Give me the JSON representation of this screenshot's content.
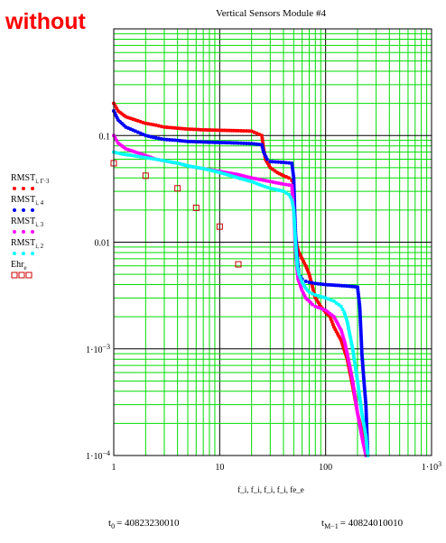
{
  "overlay_label": "without",
  "chart_data": {
    "type": "scatter",
    "title": "Vertical Sensors Module #4",
    "x_scale": "log",
    "y_scale": "log",
    "xlim": [
      1,
      1000
    ],
    "ylim": [
      0.0001,
      1
    ],
    "grid": true,
    "x_tick_labels": [
      {
        "value": 1,
        "text": "1"
      },
      {
        "value": 10,
        "text": "10"
      },
      {
        "value": 100,
        "text": "100"
      },
      {
        "value": 1000,
        "text": "1·10",
        "sup": "3"
      }
    ],
    "y_tick_labels": [
      {
        "value": 0.1,
        "text": "0.1"
      },
      {
        "value": 0.01,
        "text": "0.01"
      },
      {
        "value": 0.001,
        "text": "1·10",
        "sup": "−3"
      },
      {
        "value": 0.0001,
        "text": "1·10",
        "sup": "−4"
      }
    ],
    "xlabel": "f_i, f_i, f_i, f_i, fe_e",
    "legend": [
      {
        "label": "RMST",
        "sub": "i, Γ·3",
        "marker": "dot",
        "color": "#ff0000"
      },
      {
        "label": "RMST",
        "sub": "i, 4",
        "marker": "dot",
        "color": "#0000ff"
      },
      {
        "label": "RMST",
        "sub": "i, 3",
        "marker": "dot",
        "color": "#ff00ff"
      },
      {
        "label": "RMST",
        "sub": "i, 2",
        "marker": "dot",
        "color": "#00ffff"
      },
      {
        "label": "Ehr",
        "sub": "e",
        "marker": "square",
        "color": "#cc0000"
      }
    ],
    "legend_placement": "left",
    "series": [
      {
        "name": "RMST i,Γ·3",
        "color": "#ff0000",
        "marker": "dot",
        "x": [
          1,
          1.1,
          1.3,
          1.6,
          2,
          2.5,
          3,
          4,
          5,
          7,
          10,
          15,
          20,
          25,
          26,
          27,
          30,
          35,
          40,
          45,
          48,
          49,
          50,
          51,
          52,
          54,
          56,
          60,
          65,
          70,
          80,
          90,
          100,
          110,
          120,
          140,
          160,
          180,
          200,
          220,
          240
        ],
        "y": [
          0.2,
          0.17,
          0.15,
          0.14,
          0.13,
          0.125,
          0.12,
          0.117,
          0.115,
          0.113,
          0.112,
          0.111,
          0.11,
          0.1,
          0.075,
          0.06,
          0.05,
          0.045,
          0.042,
          0.04,
          0.038,
          0.035,
          0.025,
          0.015,
          0.011,
          0.009,
          0.008,
          0.007,
          0.006,
          0.005,
          0.003,
          0.0025,
          0.0022,
          0.002,
          0.0016,
          0.0012,
          0.0008,
          0.00045,
          0.00025,
          0.00017,
          0.00012
        ]
      },
      {
        "name": "RMST i,4",
        "color": "#0000ff",
        "marker": "dot",
        "x": [
          1,
          1.1,
          1.3,
          1.6,
          2,
          2.5,
          3,
          4,
          5,
          7,
          10,
          15,
          20,
          25,
          26,
          28,
          30,
          40,
          48,
          50,
          51,
          52,
          54,
          56,
          60,
          65,
          70,
          80,
          100,
          150,
          200,
          210,
          215,
          220,
          230,
          240,
          250
        ],
        "y": [
          0.17,
          0.14,
          0.12,
          0.11,
          0.1,
          0.095,
          0.092,
          0.09,
          0.088,
          0.087,
          0.086,
          0.085,
          0.084,
          0.082,
          0.07,
          0.06,
          0.057,
          0.056,
          0.055,
          0.04,
          0.02,
          0.012,
          0.007,
          0.005,
          0.0045,
          0.0043,
          0.0042,
          0.0041,
          0.004,
          0.0039,
          0.0038,
          0.0025,
          0.0015,
          0.0009,
          0.0005,
          0.0003,
          0.0001
        ]
      },
      {
        "name": "RMST i,3",
        "color": "#ff00ff",
        "marker": "dot",
        "x": [
          1,
          1.1,
          1.3,
          1.6,
          2,
          2.5,
          3,
          4,
          5,
          7,
          10,
          15,
          20,
          30,
          40,
          48,
          50,
          52,
          55,
          60,
          65,
          70,
          75,
          80,
          90,
          100,
          120,
          140,
          150,
          160,
          180,
          200,
          220,
          240
        ],
        "y": [
          0.1,
          0.085,
          0.075,
          0.07,
          0.065,
          0.06,
          0.058,
          0.055,
          0.052,
          0.049,
          0.046,
          0.043,
          0.04,
          0.037,
          0.035,
          0.034,
          0.02,
          0.008,
          0.0045,
          0.0035,
          0.003,
          0.0028,
          0.0026,
          0.0025,
          0.0024,
          0.0023,
          0.002,
          0.0015,
          0.0012,
          0.0009,
          0.0005,
          0.00025,
          0.00015,
          0.0001
        ]
      },
      {
        "name": "RMST i,2",
        "color": "#00ffff",
        "marker": "dot",
        "x": [
          1,
          1.2,
          1.5,
          2,
          2.5,
          3,
          4,
          5,
          7,
          10,
          15,
          20,
          25,
          30,
          40,
          45,
          48,
          50,
          52,
          54,
          56,
          60,
          65,
          70,
          80,
          90,
          100,
          120,
          140,
          150,
          160,
          180,
          200,
          220,
          240,
          250
        ],
        "y": [
          0.07,
          0.067,
          0.065,
          0.062,
          0.06,
          0.058,
          0.055,
          0.052,
          0.049,
          0.045,
          0.04,
          0.037,
          0.034,
          0.032,
          0.03,
          0.028,
          0.025,
          0.02,
          0.01,
          0.006,
          0.005,
          0.0042,
          0.0037,
          0.0034,
          0.0032,
          0.0031,
          0.003,
          0.0028,
          0.0025,
          0.0022,
          0.0018,
          0.001,
          0.0005,
          0.00025,
          0.00015,
          0.0001
        ]
      },
      {
        "name": "Ehr e",
        "color": "#cc0000",
        "marker": "square",
        "x": [
          1,
          2,
          4,
          6,
          10,
          15
        ],
        "y": [
          0.055,
          0.042,
          0.032,
          0.021,
          0.014,
          0.0062
        ]
      }
    ]
  },
  "footer": {
    "t0_label": "t",
    "t0_sub": "0",
    "t0_value": "= 40823230010",
    "tM_label": "t",
    "tM_sub": "M−1",
    "tM_value": "= 40824010010"
  }
}
